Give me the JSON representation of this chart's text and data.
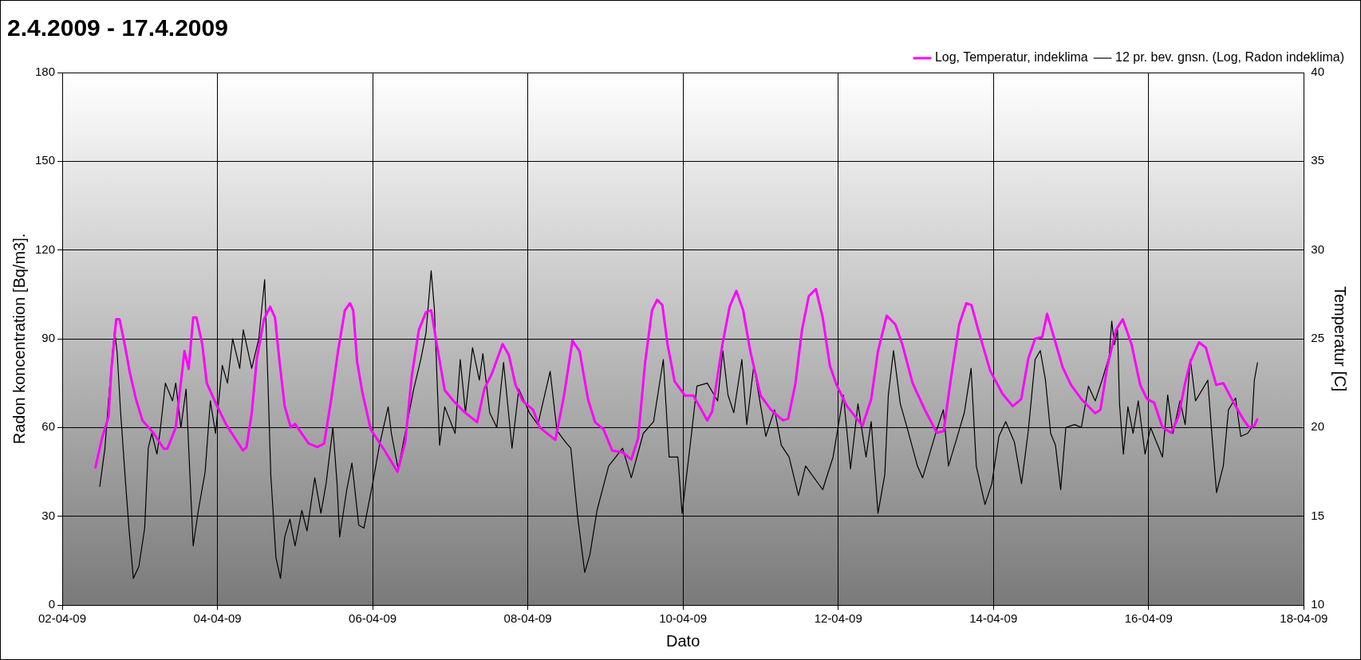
{
  "chart_data": {
    "type": "line",
    "title": "2.4.2009 - 17.4.2009",
    "xlabel": "Dato",
    "ylabel": "Radon koncentration [Bq/m3].",
    "y2label": "Temperatur [C]",
    "xlim": [
      "2009-04-02",
      "2009-04-18"
    ],
    "xticks": [
      {
        "value": "2009-04-02",
        "label": "02-04-09"
      },
      {
        "value": "2009-04-04",
        "label": "04-04-09"
      },
      {
        "value": "2009-04-06",
        "label": "06-04-09"
      },
      {
        "value": "2009-04-08",
        "label": "08-04-09"
      },
      {
        "value": "2009-04-10",
        "label": "10-04-09"
      },
      {
        "value": "2009-04-12",
        "label": "12-04-09"
      },
      {
        "value": "2009-04-14",
        "label": "14-04-09"
      },
      {
        "value": "2009-04-16",
        "label": "16-04-09"
      },
      {
        "value": "2009-04-18",
        "label": "18-04-09"
      }
    ],
    "ylim": [
      0,
      180
    ],
    "yticks": [
      0,
      30,
      60,
      90,
      120,
      150,
      180
    ],
    "y2lim": [
      10,
      40
    ],
    "y2ticks": [
      10,
      15,
      20,
      25,
      30,
      35,
      40
    ],
    "grid": true,
    "legend": "top right",
    "marker": "none",
    "line_style": "solid",
    "series": [
      {
        "name": "Log, Temperatur, indeklima",
        "color": "#ff00ff",
        "axis": "y2",
        "x": [
          "2009-04-02T10:12",
          "2009-04-02T12:18",
          "2009-04-02T14:18",
          "2009-04-02T15:12",
          "2009-04-02T16:42",
          "2009-04-02T17:42",
          "2009-04-02T19:18",
          "2009-04-02T20:54",
          "2009-04-02T22:48",
          "2009-04-03T00:48",
          "2009-04-03T04:12",
          "2009-04-03T07:24",
          "2009-04-03T08:30",
          "2009-04-03T11:06",
          "2009-04-03T13:48",
          "2009-04-03T15:06",
          "2009-04-03T16:30",
          "2009-04-03T17:30",
          "2009-04-03T19:18",
          "2009-04-03T20:42",
          "2009-04-03T23:24",
          "2009-04-04T02:36",
          "2009-04-04T07:54",
          "2009-04-04T09:00",
          "2009-04-04T10:36",
          "2009-04-04T12:12",
          "2009-04-04T14:24",
          "2009-04-04T16:18",
          "2009-04-04T17:48",
          "2009-04-04T19:12",
          "2009-04-04T20:48",
          "2009-04-04T22:42",
          "2009-04-05T00:00",
          "2009-04-05T04:12",
          "2009-04-05T06:54",
          "2009-04-05T09:00",
          "2009-04-05T11:12",
          "2009-04-05T13:18",
          "2009-04-05T15:24",
          "2009-04-05T17:00",
          "2009-04-05T18:00",
          "2009-04-05T19:12",
          "2009-04-05T20:48",
          "2009-04-05T23:24",
          "2009-04-06T03:42",
          "2009-04-06T07:42",
          "2009-04-06T10:06",
          "2009-04-06T12:06",
          "2009-04-06T14:18",
          "2009-04-06T16:30",
          "2009-04-06T18:06",
          "2009-04-06T20:12",
          "2009-04-06T22:18",
          "2009-04-07T01:00",
          "2009-04-07T04:12",
          "2009-04-07T08:18",
          "2009-04-07T10:36",
          "2009-04-07T12:48",
          "2009-04-07T16:12",
          "2009-04-07T18:06",
          "2009-04-07T20:12",
          "2009-04-07T22:24",
          "2009-04-08T01:36",
          "2009-04-08T03:42",
          "2009-04-08T08:30",
          "2009-04-08T11:12",
          "2009-04-08T13:48",
          "2009-04-08T16:00",
          "2009-04-08T18:36",
          "2009-04-08T20:48",
          "2009-04-08T23:24",
          "2009-04-09T02:06",
          "2009-04-09T05:18",
          "2009-04-09T08:00",
          "2009-04-09T10:06",
          "2009-04-09T12:18",
          "2009-04-09T14:24",
          "2009-04-09T16:00",
          "2009-04-09T17:36",
          "2009-04-09T19:12",
          "2009-04-09T21:24",
          "2009-04-10T00:36",
          "2009-04-10T03:12",
          "2009-04-10T07:30",
          "2009-04-10T09:00",
          "2009-04-10T12:12",
          "2009-04-10T14:24",
          "2009-04-10T16:30",
          "2009-04-10T18:36",
          "2009-04-10T20:48",
          "2009-04-11T00:00",
          "2009-04-11T03:12",
          "2009-04-11T06:54",
          "2009-04-11T08:30",
          "2009-04-11T10:42",
          "2009-04-11T12:48",
          "2009-04-11T14:54",
          "2009-04-11T17:06",
          "2009-04-11T19:12",
          "2009-04-11T21:24",
          "2009-04-11T23:30",
          "2009-04-12T02:42",
          "2009-04-12T07:30",
          "2009-04-12T10:12",
          "2009-04-12T12:18",
          "2009-04-12T15:00",
          "2009-04-12T17:42",
          "2009-04-12T19:48",
          "2009-04-12T23:00",
          "2009-04-13T02:48",
          "2009-04-13T06:30",
          "2009-04-13T08:36",
          "2009-04-13T10:48",
          "2009-04-13T13:24",
          "2009-04-13T15:36",
          "2009-04-13T17:12",
          "2009-04-13T19:18",
          "2009-04-13T23:00",
          "2009-04-14T02:48",
          "2009-04-14T06:00",
          "2009-04-14T08:36",
          "2009-04-14T10:48",
          "2009-04-14T12:54",
          "2009-04-14T15:06",
          "2009-04-14T16:36",
          "2009-04-14T18:42",
          "2009-04-14T21:24",
          "2009-04-15T00:00",
          "2009-04-15T03:12",
          "2009-04-15T07:30",
          "2009-04-15T09:06",
          "2009-04-15T11:12",
          "2009-04-15T13:54",
          "2009-04-15T16:00",
          "2009-04-15T18:42",
          "2009-04-15T21:24",
          "2009-04-15T23:30",
          "2009-04-16T01:42",
          "2009-04-16T04:18",
          "2009-04-16T07:00",
          "2009-04-16T09:12",
          "2009-04-16T11:18",
          "2009-04-16T12:54",
          "2009-04-16T15:36",
          "2009-04-16T17:42",
          "2009-04-16T20:54",
          "2009-04-16T23:06",
          "2009-04-17T02:18",
          "2009-04-17T05:30",
          "2009-04-17T07:06",
          "2009-04-17T08:42",
          "2009-04-17T09:42"
        ],
        "values": [
          17.7,
          19.4,
          20.6,
          23.3,
          26.1,
          26.1,
          24.7,
          23.1,
          21.6,
          20.4,
          19.7,
          18.8,
          18.8,
          20.0,
          24.3,
          23.3,
          26.2,
          26.2,
          24.7,
          22.5,
          21.4,
          20.2,
          18.7,
          18.9,
          20.8,
          23.9,
          26.1,
          26.8,
          26.2,
          23.7,
          21.2,
          20.0,
          20.2,
          19.1,
          18.9,
          19.1,
          21.6,
          24.3,
          26.6,
          27.0,
          26.6,
          23.7,
          22.0,
          19.9,
          18.7,
          17.5,
          19.2,
          22.9,
          25.5,
          26.5,
          26.6,
          24.3,
          22.1,
          21.5,
          20.9,
          20.3,
          22.2,
          23.0,
          24.7,
          24.1,
          22.4,
          21.5,
          21.0,
          20.0,
          19.3,
          21.8,
          24.9,
          24.3,
          21.6,
          20.3,
          19.9,
          18.7,
          18.6,
          18.2,
          19.4,
          23.7,
          26.6,
          27.2,
          26.9,
          24.7,
          22.6,
          21.8,
          21.8,
          20.4,
          20.9,
          24.7,
          26.8,
          27.7,
          26.6,
          24.3,
          21.8,
          21.0,
          20.4,
          20.5,
          22.4,
          25.5,
          27.4,
          27.8,
          26.2,
          23.5,
          22.4,
          21.2,
          20.1,
          21.6,
          24.3,
          26.3,
          25.8,
          24.7,
          22.5,
          21.0,
          19.7,
          19.8,
          22.7,
          25.8,
          27.0,
          26.9,
          25.5,
          23.2,
          21.9,
          21.2,
          21.6,
          23.9,
          25.0,
          25.1,
          26.4,
          25.1,
          23.4,
          22.4,
          21.6,
          20.8,
          21.0,
          23.4,
          25.5,
          26.1,
          24.7,
          22.4,
          21.6,
          21.4,
          20.0,
          19.7,
          20.6,
          22.5,
          23.7,
          24.8,
          24.5,
          22.4,
          22.5,
          21.4,
          20.4,
          20.0,
          20.1,
          20.5
        ]
      },
      {
        "name": "12 pr. bev. gnsn. (Log, Radon indeklima)",
        "color": "#000000",
        "axis": "y",
        "x": [
          "2009-04-02T11:36",
          "2009-04-02T13:12",
          "2009-04-02T14:18",
          "2009-04-02T15:12",
          "2009-04-02T16:12",
          "2009-04-02T17:00",
          "2009-04-02T18:00",
          "2009-04-02T19:36",
          "2009-04-02T20:42",
          "2009-04-02T22:00",
          "2009-04-02T23:42",
          "2009-04-03T01:30",
          "2009-04-03T02:36",
          "2009-04-03T03:42",
          "2009-04-03T05:18",
          "2009-04-03T06:18",
          "2009-04-03T07:54",
          "2009-04-03T10:06",
          "2009-04-03T11:06",
          "2009-04-03T12:42",
          "2009-04-03T14:18",
          "2009-04-03T15:24",
          "2009-04-03T16:30",
          "2009-04-03T18:06",
          "2009-04-03T20:12",
          "2009-04-03T21:48",
          "2009-04-03T23:24",
          "2009-04-04T01:30",
          "2009-04-04T03:06",
          "2009-04-04T04:42",
          "2009-04-04T06:54",
          "2009-04-04T08:00",
          "2009-04-04T10:36",
          "2009-04-04T12:48",
          "2009-04-04T14:36",
          "2009-04-04T15:36",
          "2009-04-04T16:30",
          "2009-04-04T18:06",
          "2009-04-04T19:30",
          "2009-04-04T20:48",
          "2009-04-04T22:24",
          "2009-04-05T00:00",
          "2009-04-05T02:06",
          "2009-04-05T03:42",
          "2009-04-05T06:06",
          "2009-04-05T08:00",
          "2009-04-05T09:36",
          "2009-04-05T11:42",
          "2009-04-05T13:00",
          "2009-04-05T13:48",
          "2009-04-05T16:00",
          "2009-04-05T17:36",
          "2009-04-05T19:42",
          "2009-04-05T21:18",
          "2009-04-06T00:00",
          "2009-04-06T02:06",
          "2009-04-06T04:48",
          "2009-04-06T05:48",
          "2009-04-06T07:54",
          "2009-04-06T10:36",
          "2009-04-06T12:42",
          "2009-04-06T14:54",
          "2009-04-06T16:30",
          "2009-04-06T18:06",
          "2009-04-06T19:06",
          "2009-04-06T20:42",
          "2009-04-06T22:18",
          "2009-04-07T01:30",
          "2009-04-07T03:06",
          "2009-04-07T04:42",
          "2009-04-07T06:54",
          "2009-04-07T09:00",
          "2009-04-07T10:06",
          "2009-04-07T12:12",
          "2009-04-07T14:24",
          "2009-04-07T16:30",
          "2009-04-07T19:06",
          "2009-04-07T21:12",
          "2009-04-08T00:30",
          "2009-04-08T03:06",
          "2009-04-08T06:54",
          "2009-04-08T09:00",
          "2009-04-08T11:42",
          "2009-04-08T13:18",
          "2009-04-08T15:30",
          "2009-04-08T17:36",
          "2009-04-08T19:12",
          "2009-04-08T21:24",
          "2009-04-09T01:00",
          "2009-04-09T05:18",
          "2009-04-09T08:00",
          "2009-04-09T11:42",
          "2009-04-09T14:54",
          "2009-04-09T17:54",
          "2009-04-09T19:42",
          "2009-04-09T22:24",
          "2009-04-09T23:42",
          "2009-04-10T02:06",
          "2009-04-10T04:18",
          "2009-04-10T07:30",
          "2009-04-10T10:42",
          "2009-04-10T12:18",
          "2009-04-10T13:54",
          "2009-04-10T15:42",
          "2009-04-10T18:12",
          "2009-04-10T19:42",
          "2009-04-10T21:54",
          "2009-04-11T01:36",
          "2009-04-11T04:18",
          "2009-04-11T06:24",
          "2009-04-11T08:48",
          "2009-04-11T11:42",
          "2009-04-11T13:54",
          "2009-04-11T19:12",
          "2009-04-11T22:24",
          "2009-04-12T01:36",
          "2009-04-12T03:48",
          "2009-04-12T06:06",
          "2009-04-12T08:36",
          "2009-04-12T10:12",
          "2009-04-12T12:18",
          "2009-04-12T14:24",
          "2009-04-12T15:30",
          "2009-04-12T17:06",
          "2009-04-12T19:12",
          "2009-04-12T21:18",
          "2009-04-13T00:30",
          "2009-04-13T02:06",
          "2009-04-13T06:24",
          "2009-04-13T08:30",
          "2009-04-13T10:06",
          "2009-04-13T12:18",
          "2009-04-13T15:00",
          "2009-04-13T17:06",
          "2009-04-13T18:42",
          "2009-04-13T21:24",
          "2009-04-13T23:30",
          "2009-04-14T01:42",
          "2009-04-14T03:48",
          "2009-04-14T06:30",
          "2009-04-14T08:42",
          "2009-04-14T10:48",
          "2009-04-14T12:54",
          "2009-04-14T14:30",
          "2009-04-14T16:06",
          "2009-04-14T17:42",
          "2009-04-14T19:12",
          "2009-04-14T20:48",
          "2009-04-14T22:24",
          "2009-04-15T01:06",
          "2009-04-15T03:12",
          "2009-04-15T05:24",
          "2009-04-15T07:30",
          "2009-04-15T09:36",
          "2009-04-15T11:48",
          "2009-04-15T12:36",
          "2009-04-15T13:24",
          "2009-04-15T14:24",
          "2009-04-15T15:00",
          "2009-04-15T16:12",
          "2009-04-15T17:36",
          "2009-04-15T19:12",
          "2009-04-15T20:48",
          "2009-04-15T22:54",
          "2009-04-16T00:36",
          "2009-04-16T03:12",
          "2009-04-16T04:18",
          "2009-04-16T05:54",
          "2009-04-16T07:30",
          "2009-04-16T09:42",
          "2009-04-16T11:18",
          "2009-04-16T12:54",
          "2009-04-16T14:30",
          "2009-04-16T16:42",
          "2009-04-16T18:18",
          "2009-04-16T19:24",
          "2009-04-16T21:00",
          "2009-04-16T23:06",
          "2009-04-17T00:42",
          "2009-04-17T02:54",
          "2009-04-17T04:30",
          "2009-04-17T06:36",
          "2009-04-17T07:54",
          "2009-04-17T08:42",
          "2009-04-17T09:42"
        ],
        "values": [
          40,
          53,
          69,
          81,
          93,
          85,
          66,
          41,
          25,
          9,
          13,
          26,
          53,
          58,
          51,
          59,
          75,
          69,
          75,
          60,
          73,
          46,
          20,
          32,
          45,
          69,
          58,
          81,
          75,
          90,
          80,
          93,
          80,
          90,
          110,
          76,
          44,
          16,
          9,
          23,
          29,
          20,
          32,
          25,
          43,
          31,
          41,
          60,
          41,
          23,
          39,
          48,
          27,
          26,
          41,
          54,
          67,
          58,
          46,
          61,
          73,
          83,
          92,
          113,
          100,
          54,
          67,
          58,
          83,
          65,
          87,
          76,
          85,
          65,
          60,
          82,
          53,
          73,
          65,
          61,
          79,
          59,
          55,
          53,
          29,
          11,
          17,
          32,
          47,
          53,
          43,
          58,
          62,
          83,
          50,
          50,
          31,
          53,
          74,
          75,
          69,
          86,
          71,
          65,
          83,
          61,
          81,
          57,
          66,
          54,
          50,
          37,
          47,
          39,
          50,
          71,
          46,
          68,
          50,
          62,
          31,
          44,
          71,
          86,
          68,
          60,
          47,
          43,
          59,
          66,
          47,
          55,
          65,
          80,
          47,
          34,
          41,
          57,
          62,
          55,
          41,
          59,
          83,
          86,
          76,
          58,
          54,
          39,
          60,
          61,
          60,
          74,
          69,
          76,
          84,
          96,
          88,
          93,
          68,
          51,
          67,
          58,
          69,
          51,
          60,
          53,
          50,
          71,
          58,
          69,
          61,
          83,
          69,
          73,
          76,
          60,
          38,
          47,
          66,
          70,
          57,
          58,
          60,
          76,
          82
        ]
      }
    ]
  }
}
